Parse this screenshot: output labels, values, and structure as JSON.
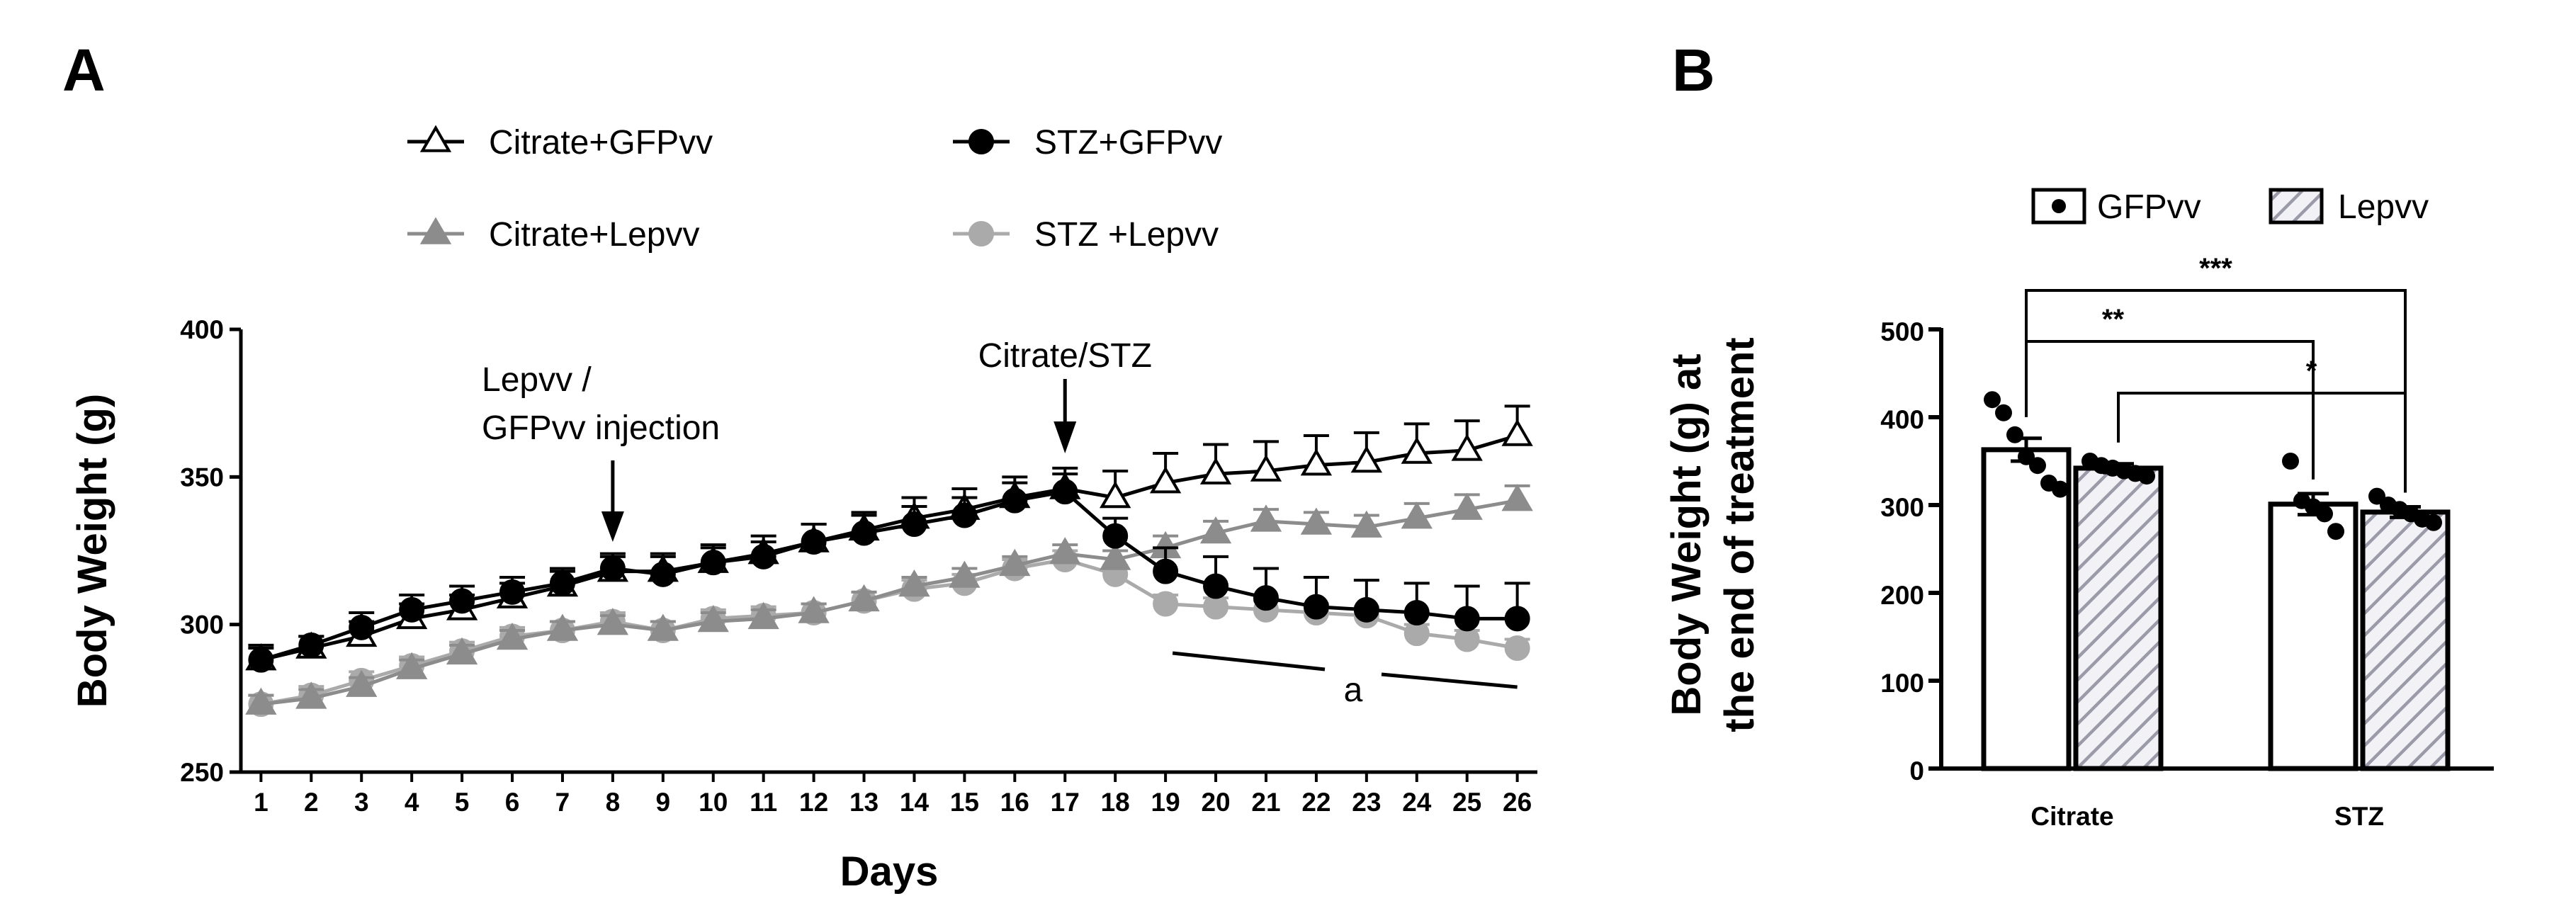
{
  "panel_a_label": "A",
  "panel_b_label": "B",
  "chart_data": [
    {
      "type": "line",
      "panel": "A",
      "title": "",
      "xlabel": "Days",
      "ylabel": "Body Weight (g)",
      "x": [
        1,
        2,
        3,
        4,
        5,
        6,
        7,
        8,
        9,
        10,
        11,
        12,
        13,
        14,
        15,
        16,
        17,
        18,
        19,
        20,
        21,
        22,
        23,
        24,
        25,
        26
      ],
      "xlim": [
        0.6,
        26.4
      ],
      "ylim": [
        250,
        400
      ],
      "yticks": [
        250,
        300,
        350,
        400
      ],
      "series": [
        {
          "name": "Citrate+GFPvv",
          "marker": "open-triangle",
          "color": "#000000",
          "values": [
            288,
            292,
            296,
            302,
            305,
            309,
            313,
            318,
            318,
            321,
            324,
            328,
            332,
            336,
            339,
            343,
            346,
            343,
            348,
            351,
            352,
            354,
            355,
            358,
            359,
            364
          ],
          "errors": [
            4,
            4,
            5,
            5,
            5,
            5,
            5,
            5,
            6,
            6,
            6,
            6,
            6,
            7,
            7,
            7,
            7,
            9,
            10,
            10,
            10,
            10,
            10,
            10,
            10,
            10
          ]
        },
        {
          "name": "STZ+GFPvv",
          "marker": "filled-circle",
          "color": "#000000",
          "values": [
            288,
            293,
            299,
            305,
            308,
            311,
            314,
            319,
            317,
            321,
            323,
            328,
            331,
            334,
            337,
            342,
            345,
            330,
            318,
            313,
            309,
            306,
            305,
            304,
            302,
            302
          ],
          "errors": [
            5,
            3,
            5,
            5,
            5,
            5,
            5,
            5,
            6,
            5,
            5,
            6,
            6,
            6,
            6,
            6,
            6,
            6,
            8,
            10,
            10,
            10,
            10,
            10,
            11,
            12
          ]
        },
        {
          "name": "Citrate+Lepvv",
          "marker": "filled-triangle",
          "color": "#8c8c8c",
          "values": [
            273,
            275,
            279,
            285,
            290,
            295,
            298,
            300,
            298,
            301,
            302,
            304,
            308,
            313,
            316,
            320,
            324,
            322,
            326,
            331,
            335,
            334,
            333,
            336,
            339,
            342
          ],
          "errors": [
            3,
            3,
            3,
            3,
            3,
            3,
            3,
            3,
            3,
            3,
            3,
            3,
            3,
            3,
            3,
            3,
            3,
            3,
            4,
            4,
            4,
            4,
            4,
            5,
            5,
            5
          ]
        },
        {
          "name": "STZ +Lepvv",
          "marker": "filled-circle",
          "color": "#aaaaaa",
          "values": [
            273,
            276,
            281,
            286,
            291,
            296,
            298,
            301,
            298,
            302,
            303,
            304,
            308,
            312,
            314,
            319,
            322,
            317,
            307,
            306,
            305,
            304,
            303,
            297,
            295,
            292
          ],
          "errors": [
            3,
            3,
            3,
            3,
            3,
            3,
            3,
            3,
            3,
            3,
            3,
            3,
            3,
            3,
            3,
            3,
            3,
            3,
            3,
            3,
            3,
            3,
            3,
            3,
            3,
            3
          ]
        }
      ],
      "annotations": {
        "lepvv_injection": {
          "text_line1": "Lepvv /",
          "text_line2": "GFPvv injection",
          "day": 8
        },
        "citrate_stz": {
          "text": "Citrate/STZ",
          "day": 17
        },
        "significance": {
          "text": "a",
          "from_day": 19,
          "to_day": 26
        }
      }
    },
    {
      "type": "bar",
      "panel": "B",
      "title": "",
      "xlabel": "",
      "ylabel_line1": "Body Weight (g) at",
      "ylabel_line2": "the end of treatment",
      "categories": [
        "Citrate",
        "STZ"
      ],
      "ylim": [
        0,
        500
      ],
      "yticks": [
        0,
        100,
        200,
        300,
        400,
        500
      ],
      "legend": [
        {
          "name": "GFPvv",
          "pattern": "open-with-dot"
        },
        {
          "name": "Lepvv",
          "pattern": "hatched"
        }
      ],
      "series": [
        {
          "name": "GFPvv",
          "values": [
            363,
            301
          ],
          "errors": [
            13,
            12
          ],
          "points": [
            [
              420,
              405,
              380,
              355,
              345,
              325,
              318
            ],
            [
              350,
              305,
              298,
              290,
              270
            ]
          ]
        },
        {
          "name": "Lepvv",
          "values": [
            342,
            292
          ],
          "errors": [
            5,
            6
          ],
          "points": [
            [
              350,
              345,
              342,
              339,
              336,
              333
            ],
            [
              310,
              300,
              295,
              290,
              284,
              280
            ]
          ]
        }
      ],
      "comparisons": [
        {
          "label": "***",
          "from": "Citrate GFPvv",
          "to": "STZ Lepvv"
        },
        {
          "label": "**",
          "from": "Citrate GFPvv",
          "to": "STZ GFPvv"
        },
        {
          "label": "*",
          "from": "Citrate Lepvv",
          "to": "STZ Lepvv"
        }
      ]
    }
  ]
}
